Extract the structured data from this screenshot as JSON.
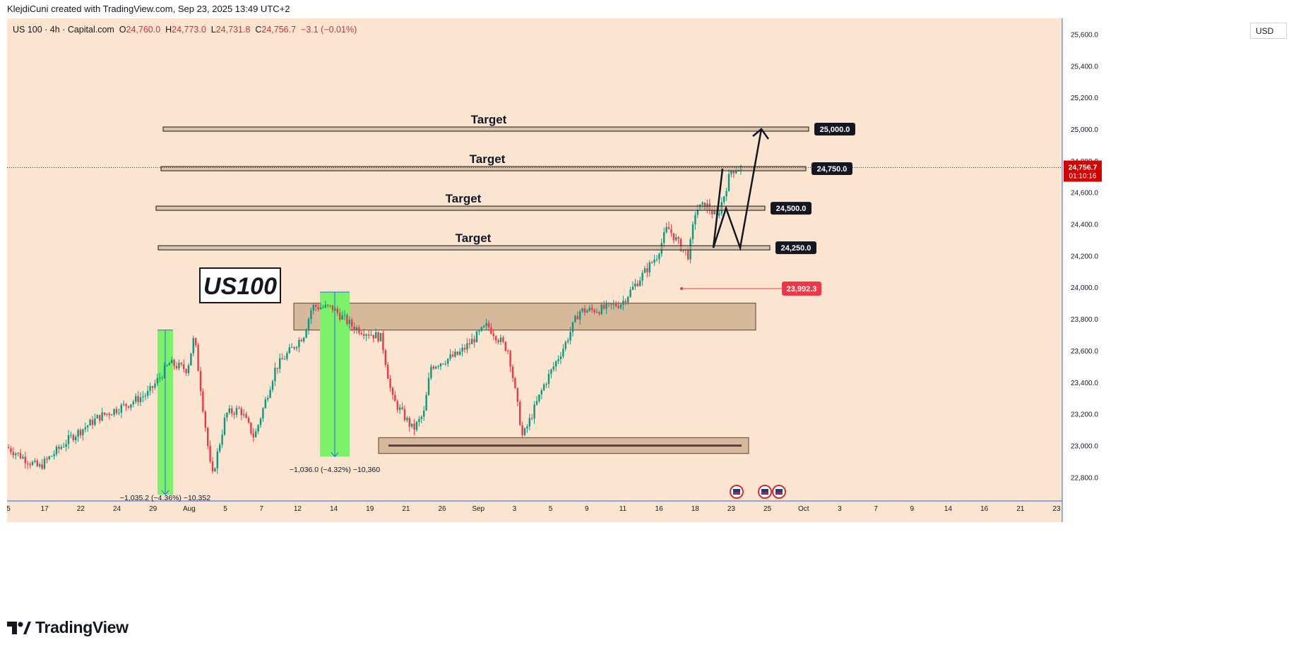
{
  "header": {
    "credit": "KlejdiCuni created with TradingView.com, Sep 23, 2025 13:49 UTC+2"
  },
  "symbol": {
    "name": "US 100 · 4h · Capital.com",
    "o_label": "O",
    "o": "24,760.0",
    "h_label": "H",
    "h": "24,773.0",
    "l_label": "L",
    "l": "24,731.8",
    "c_label": "C",
    "c": "24,756.7",
    "change": "−3.1 (−0.01%)"
  },
  "currency": "USD",
  "footer": {
    "brand": "TradingView"
  },
  "colors": {
    "background": "#fbe5d0",
    "up": "#089981",
    "down": "#f23645",
    "zone": "#c9a888",
    "measure_fill": "#7cf26a",
    "measure_line": "#2962ff",
    "axis_line": "#2962ff",
    "price_tag_current": "#d50000",
    "price_tag_low": "#f23645"
  },
  "chart_data": {
    "type": "candlestick",
    "title": "US100",
    "ylim": [
      22650,
      25700
    ],
    "y_ticks": [
      "25,600.0",
      "25,400.0",
      "25,200.0",
      "25,000.0",
      "24,800.0",
      "24,600.0",
      "24,400.0",
      "24,200.0",
      "24,000.0",
      "23,800.0",
      "23,600.0",
      "23,400.0",
      "23,200.0",
      "23,000.0",
      "22,800.0"
    ],
    "x_ticks": [
      "5",
      "17",
      "22",
      "24",
      "29",
      "Aug",
      "5",
      "7",
      "12",
      "14",
      "19",
      "21",
      "26",
      "Sep",
      "3",
      "5",
      "9",
      "11",
      "16",
      "18",
      "23",
      "25",
      "Oct",
      "3",
      "7",
      "9",
      "14",
      "16",
      "21",
      "23"
    ],
    "path_points": [
      [
        0,
        22990
      ],
      [
        45,
        22860
      ],
      [
        90,
        23050
      ],
      [
        130,
        23180
      ],
      [
        170,
        23260
      ],
      [
        200,
        23330
      ],
      [
        230,
        23520
      ],
      [
        255,
        23480
      ],
      [
        265,
        23690
      ],
      [
        290,
        22790
      ],
      [
        310,
        23200
      ],
      [
        330,
        23230
      ],
      [
        350,
        23050
      ],
      [
        380,
        23490
      ],
      [
        420,
        23700
      ],
      [
        432,
        23880
      ],
      [
        460,
        23870
      ],
      [
        490,
        23750
      ],
      [
        530,
        23680
      ],
      [
        545,
        23300
      ],
      [
        575,
        23100
      ],
      [
        590,
        23200
      ],
      [
        600,
        23500
      ],
      [
        640,
        23580
      ],
      [
        680,
        23760
      ],
      [
        710,
        23600
      ],
      [
        730,
        23050
      ],
      [
        760,
        23380
      ],
      [
        790,
        23640
      ],
      [
        810,
        23850
      ],
      [
        840,
        23860
      ],
      [
        870,
        23900
      ],
      [
        900,
        24080
      ],
      [
        920,
        24200
      ],
      [
        935,
        24380
      ],
      [
        955,
        24250
      ],
      [
        965,
        24200
      ],
      [
        975,
        24490
      ],
      [
        990,
        24520
      ],
      [
        1005,
        24440
      ],
      [
        1015,
        24580
      ],
      [
        1025,
        24740
      ],
      [
        1040,
        24757
      ]
    ],
    "targets": [
      {
        "label": "Target",
        "value": "25,000.0",
        "price": 25000
      },
      {
        "label": "Target",
        "value": "24,750.0",
        "price": 24750
      },
      {
        "label": "Target",
        "value": "24,500.0",
        "price": 24500
      },
      {
        "label": "Target",
        "value": "24,250.0",
        "price": 24250
      }
    ],
    "zones": [
      {
        "name": "resistance-zone",
        "from": 23730,
        "to": 23900
      },
      {
        "name": "support-zone",
        "from": 22950,
        "to": 23050
      }
    ],
    "support_line": 23000,
    "measurements": [
      {
        "label": "−1,035.2 (−4.36%) −10,352",
        "from": 23730,
        "to": 22690
      },
      {
        "label": "−1,036.0 (−4.32%) −10,360",
        "from": 23970,
        "to": 22930
      }
    ],
    "projection": [
      24750,
      24250,
      24500,
      24250,
      25000
    ],
    "current_price": {
      "value": "24,756.7",
      "countdown": "01:10:16",
      "price": 24756.7
    },
    "low_marker": {
      "value": "23,992.3",
      "price": 23992.3
    },
    "instrument_label": "US100"
  }
}
